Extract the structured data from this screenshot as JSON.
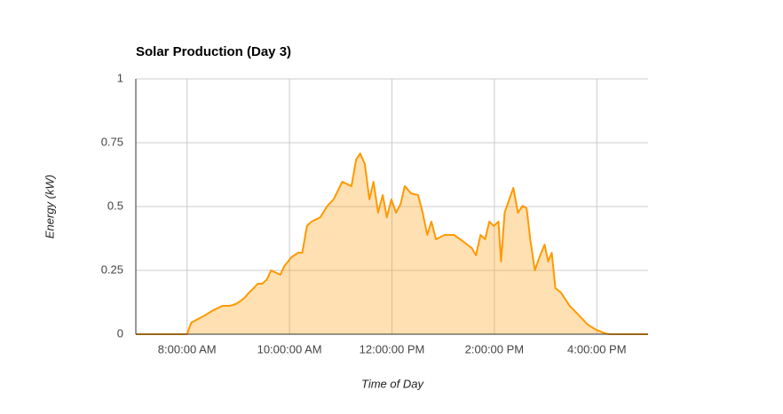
{
  "chart_data": {
    "type": "area",
    "title": "Solar Production (Day 3)",
    "x_label": "Time of Day",
    "y_label": "Energy (kW)",
    "series": [
      {
        "name": "Energy (kW)",
        "color": "#ff9900",
        "x": [
          7.0,
          8.0,
          8.08,
          8.34,
          8.51,
          8.69,
          8.83,
          8.95,
          9.03,
          9.12,
          9.21,
          9.3,
          9.38,
          9.47,
          9.56,
          9.64,
          9.82,
          9.9,
          10.04,
          10.17,
          10.25,
          10.34,
          10.43,
          10.6,
          10.74,
          10.86,
          11.03,
          11.21,
          11.3,
          11.38,
          11.47,
          11.56,
          11.64,
          11.73,
          11.82,
          11.9,
          11.99,
          12.08,
          12.17,
          12.25,
          12.37,
          12.51,
          12.6,
          12.69,
          12.77,
          12.86,
          13.03,
          13.21,
          13.38,
          13.56,
          13.64,
          13.73,
          13.82,
          13.9,
          13.99,
          14.08,
          14.13,
          14.2,
          14.29,
          14.37,
          14.46,
          14.55,
          14.63,
          14.7,
          14.79,
          14.88,
          14.98,
          15.05,
          15.12,
          15.19,
          15.3,
          15.47,
          15.64,
          15.82,
          15.99,
          16.17,
          16.25,
          17.0
        ],
        "values": [
          0,
          0,
          0.045,
          0.073,
          0.094,
          0.111,
          0.111,
          0.118,
          0.128,
          0.142,
          0.163,
          0.18,
          0.198,
          0.198,
          0.215,
          0.25,
          0.233,
          0.267,
          0.302,
          0.319,
          0.319,
          0.424,
          0.441,
          0.458,
          0.503,
          0.528,
          0.597,
          0.58,
          0.684,
          0.708,
          0.667,
          0.528,
          0.597,
          0.476,
          0.545,
          0.458,
          0.528,
          0.476,
          0.51,
          0.58,
          0.552,
          0.545,
          0.476,
          0.389,
          0.441,
          0.372,
          0.389,
          0.389,
          0.365,
          0.337,
          0.309,
          0.389,
          0.372,
          0.441,
          0.424,
          0.441,
          0.285,
          0.476,
          0.528,
          0.573,
          0.476,
          0.503,
          0.493,
          0.372,
          0.25,
          0.302,
          0.351,
          0.285,
          0.319,
          0.181,
          0.163,
          0.111,
          0.076,
          0.038,
          0.017,
          0.003,
          0,
          0
        ]
      }
    ],
    "xlim": [
      7,
      17
    ],
    "xticks": [
      {
        "value": 8,
        "label": "8:00:00 AM"
      },
      {
        "value": 10,
        "label": "10:00:00 AM"
      },
      {
        "value": 12,
        "label": "12:00:00 PM"
      },
      {
        "value": 14,
        "label": "2:00:00 PM"
      },
      {
        "value": 16,
        "label": "4:00:00 PM"
      }
    ],
    "ylim": [
      0,
      1
    ],
    "yticks": [
      0,
      0.25,
      0.5,
      0.75,
      1
    ],
    "grid": true
  }
}
